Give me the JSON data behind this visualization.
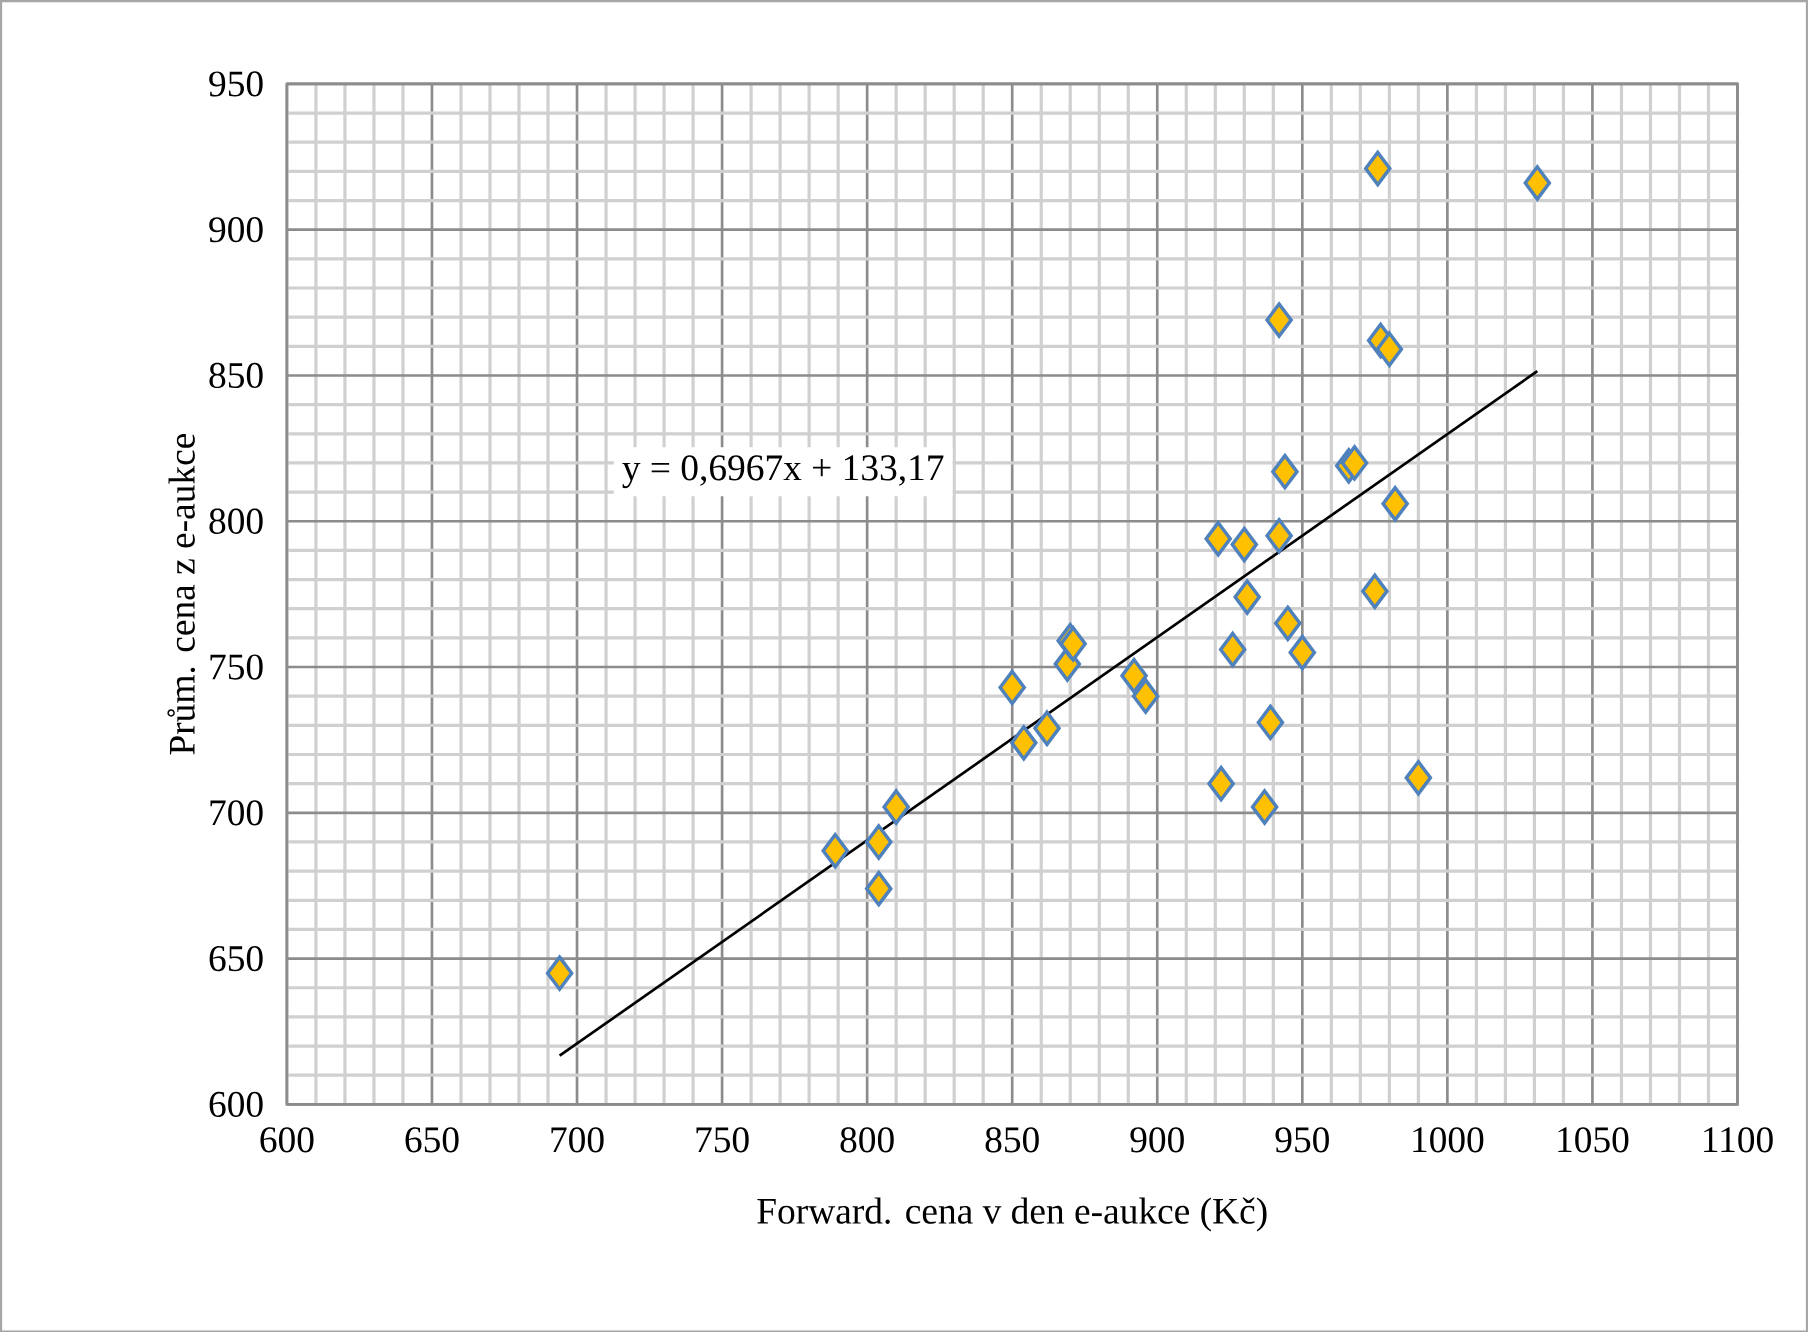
{
  "chart_data": {
    "type": "scatter",
    "xlabel": "Forward. cena v den e-aukce (Kč)",
    "ylabel": "Prům. cena z e-aukce",
    "xlim": [
      600,
      1100
    ],
    "xticks": [
      600,
      650,
      700,
      750,
      800,
      850,
      900,
      950,
      1000,
      1050,
      1100
    ],
    "ylim": [
      600,
      950
    ],
    "yticks": [
      600,
      650,
      700,
      750,
      800,
      850,
      900,
      950
    ],
    "grid": true,
    "annotations": [
      "y = 0,6967x + 133,17"
    ],
    "series": [
      {
        "color": "#ffc000",
        "marker": "diamond",
        "x": [
          694,
          789,
          804,
          804,
          810,
          850,
          854,
          862,
          869,
          870,
          871,
          892,
          896,
          921,
          922,
          926,
          930,
          931,
          937,
          939,
          942,
          942,
          944,
          945,
          950,
          966,
          968,
          975,
          976,
          977,
          980,
          982,
          990,
          1031
        ],
        "values": [
          645,
          687,
          690,
          674,
          702,
          743,
          724,
          729,
          751,
          759,
          758,
          747,
          740,
          794,
          710,
          756,
          792,
          774,
          702,
          731,
          869,
          795,
          817,
          765,
          755,
          819,
          820,
          776,
          921,
          862,
          859,
          806,
          712,
          916
        ]
      },
      {
        "type": "line",
        "color": "#000000",
        "marker": "none",
        "line_style": "solid",
        "x": [
          694,
          1031
        ],
        "values": [
          616.7,
          851.5
        ]
      }
    ]
  }
}
